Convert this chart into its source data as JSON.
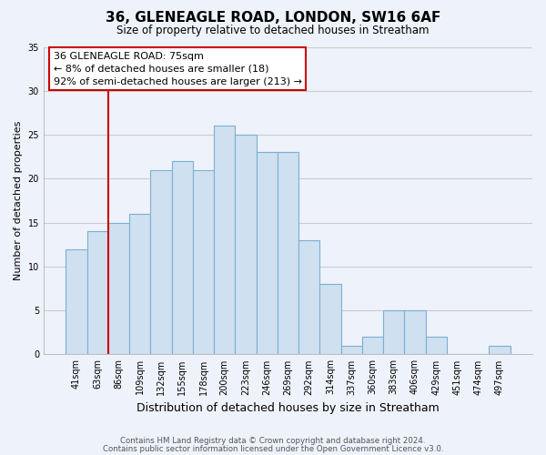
{
  "title": "36, GLENEAGLE ROAD, LONDON, SW16 6AF",
  "subtitle": "Size of property relative to detached houses in Streatham",
  "xlabel": "Distribution of detached houses by size in Streatham",
  "ylabel": "Number of detached properties",
  "bar_color": "#cfe0f0",
  "bar_edge_color": "#7ab0d4",
  "categories": [
    "41sqm",
    "63sqm",
    "86sqm",
    "109sqm",
    "132sqm",
    "155sqm",
    "178sqm",
    "200sqm",
    "223sqm",
    "246sqm",
    "269sqm",
    "292sqm",
    "314sqm",
    "337sqm",
    "360sqm",
    "383sqm",
    "406sqm",
    "429sqm",
    "451sqm",
    "474sqm",
    "497sqm"
  ],
  "values": [
    12,
    14,
    15,
    16,
    21,
    22,
    21,
    26,
    25,
    23,
    23,
    13,
    8,
    1,
    2,
    5,
    5,
    2,
    0,
    0,
    1
  ],
  "ylim": [
    0,
    35
  ],
  "yticks": [
    0,
    5,
    10,
    15,
    20,
    25,
    30,
    35
  ],
  "annotation_title": "36 GLENEAGLE ROAD: 75sqm",
  "annotation_line1": "← 8% of detached houses are smaller (18)",
  "annotation_line2": "92% of semi-detached houses are larger (213) →",
  "annotation_box_color": "#ffffff",
  "annotation_box_edge": "#cc0000",
  "property_line_color": "#cc0000",
  "grid_color": "#cccccc",
  "footer1": "Contains HM Land Registry data © Crown copyright and database right 2024.",
  "footer2": "Contains public sector information licensed under the Open Government Licence v3.0.",
  "background_color": "#eef2fa"
}
